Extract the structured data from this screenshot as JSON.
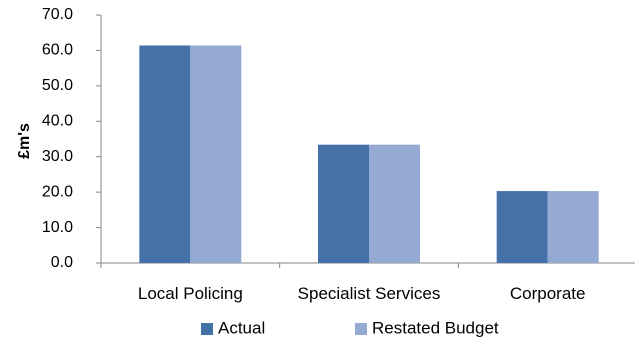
{
  "chart_data": {
    "type": "bar",
    "title": "",
    "xlabel": "",
    "ylabel": "£m's",
    "categories": [
      "Local Policing",
      "Specialist Services",
      "Corporate"
    ],
    "series": [
      {
        "name": "Actual",
        "color": "#4472a8",
        "values": [
          61.4,
          33.4,
          20.3
        ]
      },
      {
        "name": "Restated Budget",
        "color": "#95aad3",
        "values": [
          61.4,
          33.4,
          20.3
        ]
      }
    ],
    "ylim": [
      0,
      70
    ],
    "yticks": [
      "0.0",
      "10.0",
      "20.0",
      "30.0",
      "40.0",
      "50.0",
      "60.0",
      "70.0"
    ],
    "grid": false,
    "legend_position": "bottom"
  }
}
